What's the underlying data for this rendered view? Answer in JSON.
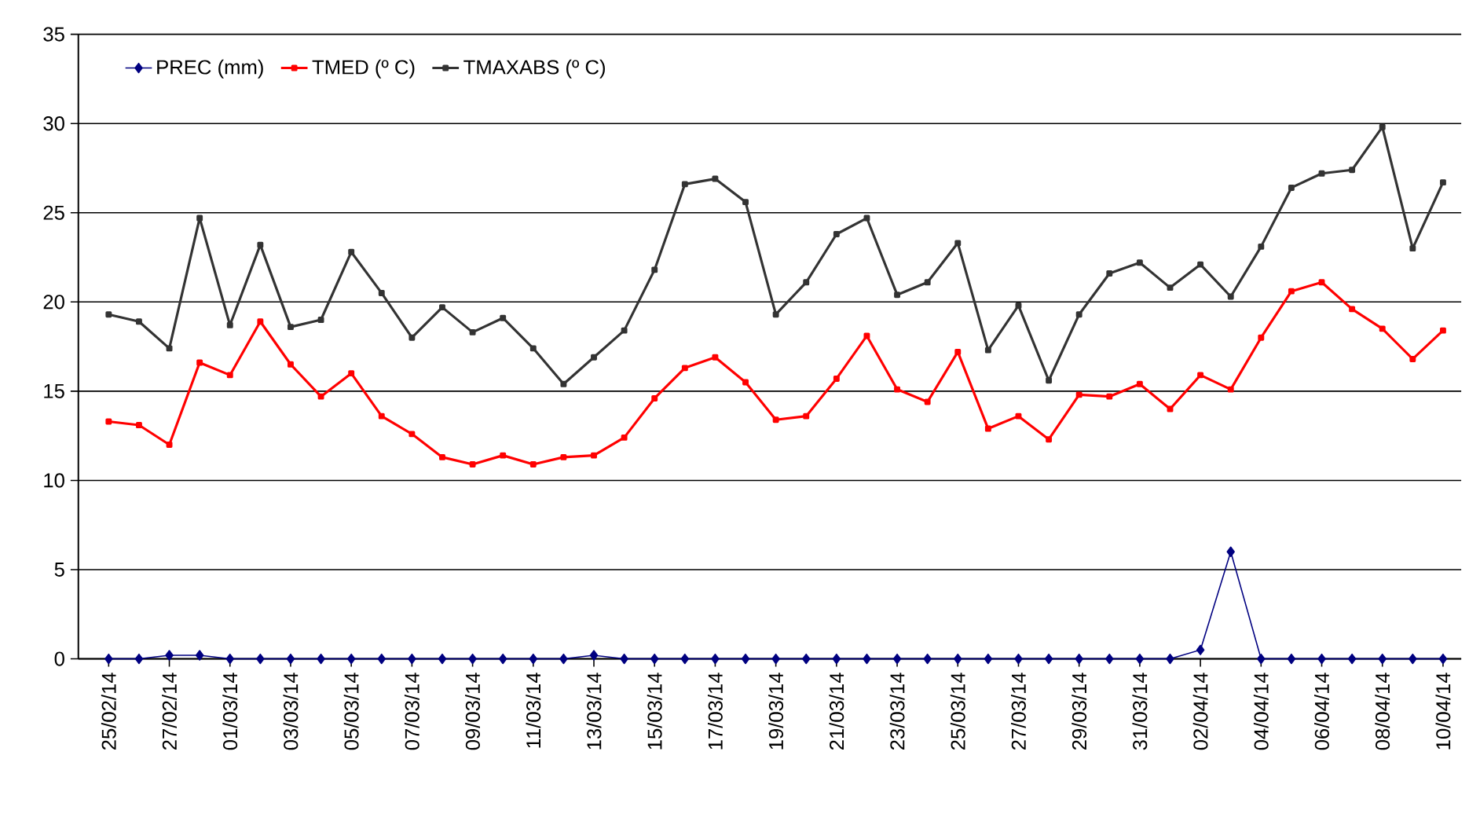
{
  "chart_data": {
    "type": "line",
    "categories": [
      "25/02/14",
      null,
      "27/02/14",
      null,
      "01/03/14",
      null,
      "03/03/14",
      null,
      "05/03/14",
      null,
      "07/03/14",
      null,
      "09/03/14",
      null,
      "11/03/14",
      null,
      "13/03/14",
      null,
      "15/03/14",
      null,
      "17/03/14",
      null,
      "19/03/14",
      null,
      "21/03/14",
      null,
      "23/03/14",
      null,
      "25/03/14",
      null,
      "27/03/14",
      null,
      "29/03/14",
      null,
      "31/03/14",
      null,
      "02/04/14",
      null,
      "04/04/14",
      null,
      "06/04/14",
      null,
      "08/04/14",
      null,
      "10/04/14"
    ],
    "series": [
      {
        "name": "PREC  (mm)",
        "color": "#000080",
        "marker": "diamond",
        "values": [
          0,
          0,
          0.2,
          0.2,
          0,
          0,
          0,
          0,
          0,
          0,
          0,
          0,
          0,
          0,
          0,
          0,
          0.2,
          0,
          0,
          0,
          0,
          0,
          0,
          0,
          0,
          0,
          0,
          0,
          0,
          0,
          0,
          0,
          0,
          0,
          0,
          0,
          0.5,
          6.0,
          0,
          0,
          0,
          0,
          0,
          0,
          0
        ]
      },
      {
        "name": "TMED  (º C)",
        "color": "#ff0000",
        "marker": "square",
        "values": [
          13.3,
          13.1,
          12.0,
          16.6,
          15.9,
          18.9,
          16.5,
          14.7,
          16.0,
          13.6,
          12.6,
          11.3,
          10.9,
          11.4,
          10.9,
          11.3,
          11.4,
          12.4,
          14.6,
          16.3,
          16.9,
          15.5,
          13.4,
          13.6,
          15.7,
          18.1,
          15.1,
          14.4,
          17.2,
          12.9,
          13.6,
          12.3,
          14.8,
          14.7,
          15.4,
          14.0,
          15.9,
          15.1,
          18.0,
          20.6,
          21.1,
          19.6,
          18.5,
          16.8,
          18.4
        ]
      },
      {
        "name": "TMAXABS  (º C)",
        "color": "#333333",
        "marker": "square",
        "values": [
          19.3,
          18.9,
          17.4,
          24.7,
          18.7,
          23.2,
          18.6,
          19.0,
          22.8,
          20.5,
          18.0,
          19.7,
          18.3,
          19.1,
          17.4,
          15.4,
          16.9,
          18.4,
          21.8,
          26.6,
          26.9,
          25.6,
          19.3,
          21.1,
          23.8,
          24.7,
          20.4,
          21.1,
          23.3,
          17.3,
          19.8,
          15.6,
          19.3,
          21.6,
          22.2,
          20.8,
          22.1,
          20.3,
          23.1,
          26.4,
          27.2,
          27.4,
          29.8,
          23.0,
          26.7
        ]
      }
    ],
    "ylim": [
      0,
      35
    ],
    "yticks": [
      0,
      5,
      10,
      15,
      20,
      25,
      30,
      35
    ],
    "grid": "y",
    "legend": "top left"
  }
}
